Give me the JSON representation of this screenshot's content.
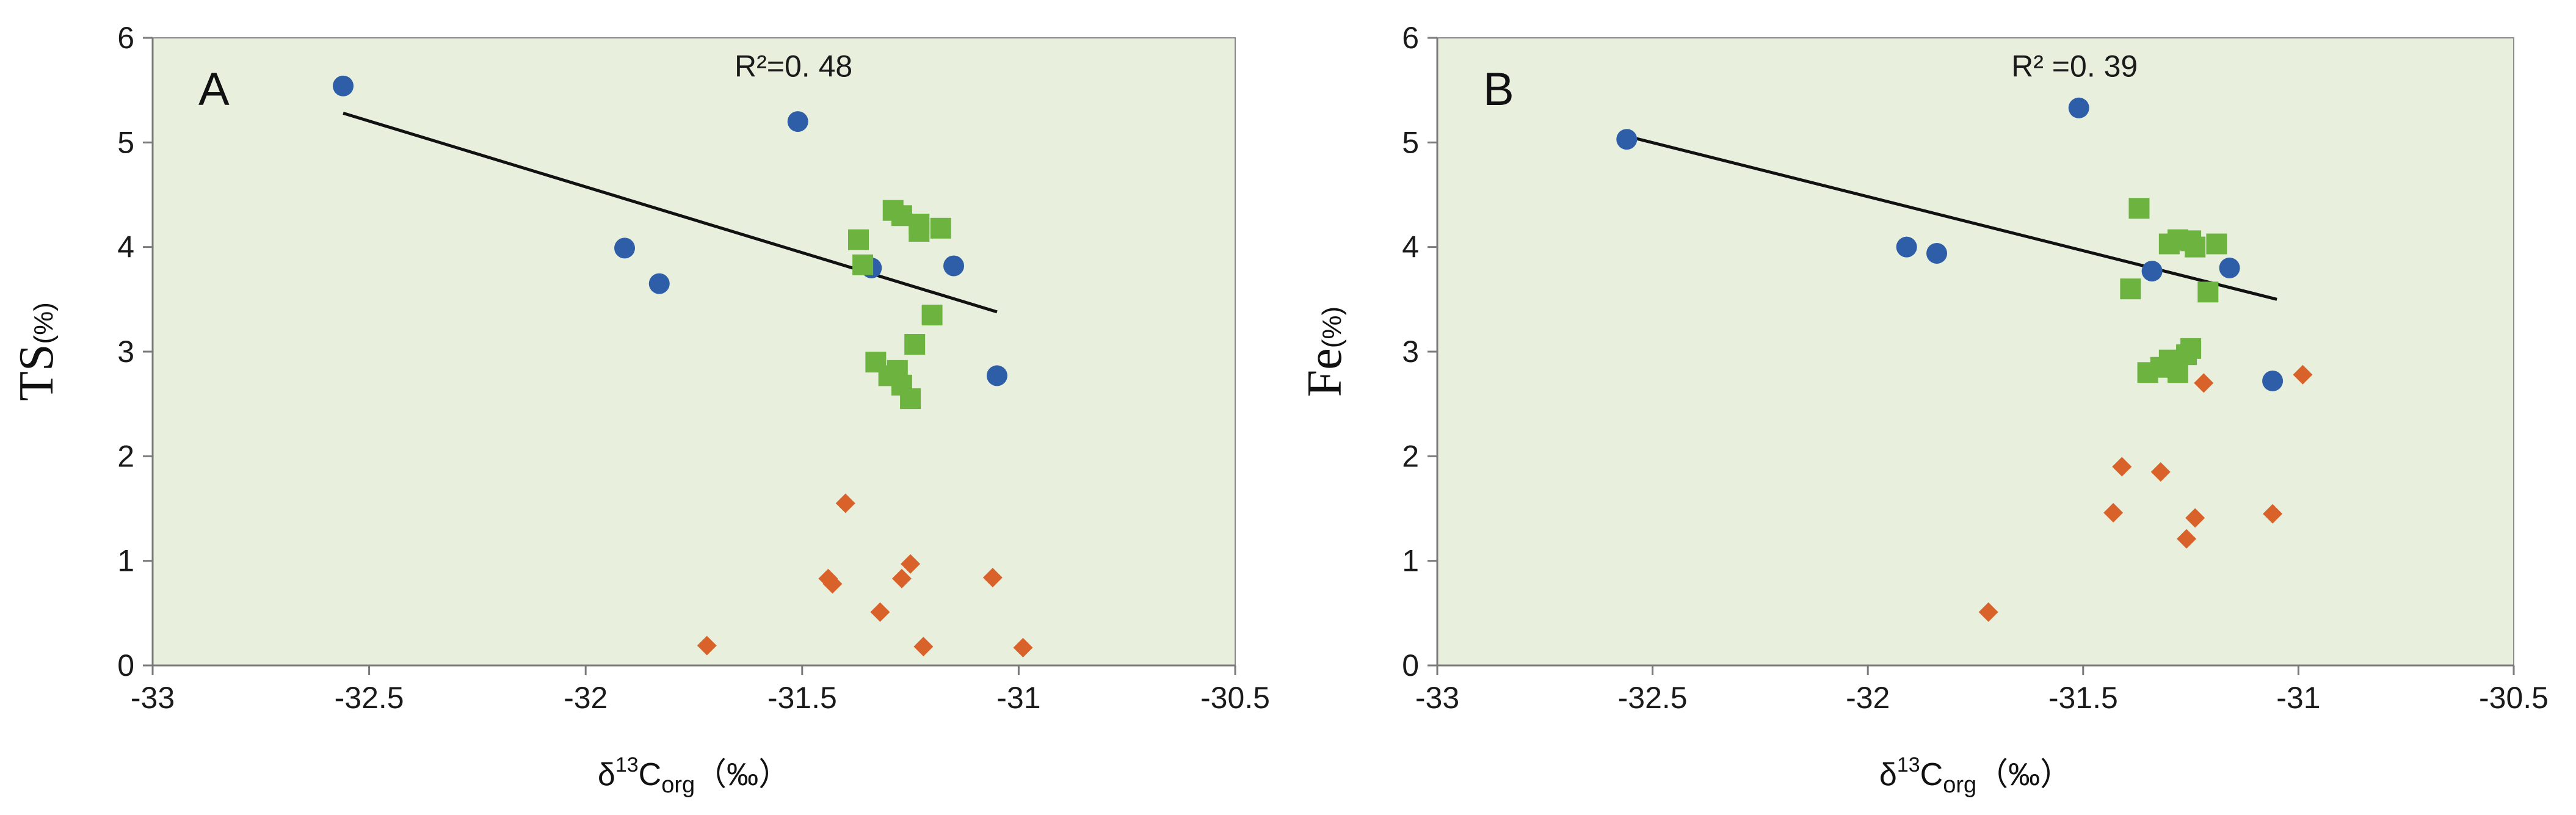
{
  "chart_data": [
    {
      "type": "scatter",
      "panel_label": "A",
      "title": "",
      "ylabel": "TS",
      "ylabel_unit": "(%)",
      "xlabel": {
        "prefix": "δ",
        "sup": "13",
        "base": "C",
        "sub": "org",
        "unit": "（‰）"
      },
      "xlim": [
        -33,
        -30.5
      ],
      "ylim": [
        0,
        6
      ],
      "x_ticks": [
        -33,
        -32.5,
        -32,
        -31.5,
        -31,
        -30.5
      ],
      "x_tick_labels": [
        "-33",
        "-32.5",
        "-32",
        "-31.5",
        "-31",
        "-30.5"
      ],
      "y_ticks": [
        0,
        1,
        2,
        3,
        4,
        5,
        6
      ],
      "y_tick_labels": [
        "0",
        "1",
        "2",
        "3",
        "4",
        "5",
        "6"
      ],
      "plot_background": "#e8f0dd",
      "grid": false,
      "annotation": "R²=0. 48",
      "trendline": {
        "x": [
          -32.56,
          -31.05
        ],
        "y": [
          5.28,
          3.38
        ],
        "color": "#111111"
      },
      "series": [
        {
          "name": "circles",
          "marker": "circle",
          "color": "#2f5ea8",
          "points": [
            [
              -32.56,
              5.54
            ],
            [
              -31.91,
              3.99
            ],
            [
              -31.83,
              3.65
            ],
            [
              -31.51,
              5.2
            ],
            [
              -31.34,
              3.8
            ],
            [
              -31.15,
              3.82
            ],
            [
              -31.05,
              2.77
            ]
          ]
        },
        {
          "name": "squares",
          "marker": "square",
          "color": "#6db33f",
          "points": [
            [
              -31.36,
              3.83
            ],
            [
              -31.37,
              4.07
            ],
            [
              -31.29,
              4.35
            ],
            [
              -31.27,
              4.3
            ],
            [
              -31.23,
              4.15
            ],
            [
              -31.23,
              4.22
            ],
            [
              -31.18,
              4.18
            ],
            [
              -31.2,
              3.35
            ],
            [
              -31.24,
              3.07
            ],
            [
              -31.33,
              2.9
            ],
            [
              -31.3,
              2.77
            ],
            [
              -31.28,
              2.82
            ],
            [
              -31.27,
              2.68
            ],
            [
              -31.25,
              2.55
            ]
          ]
        },
        {
          "name": "diamonds",
          "marker": "diamond",
          "color": "#d9622b",
          "points": [
            [
              -31.72,
              0.19
            ],
            [
              -31.44,
              0.83
            ],
            [
              -31.43,
              0.78
            ],
            [
              -31.4,
              1.55
            ],
            [
              -31.32,
              0.51
            ],
            [
              -31.27,
              0.83
            ],
            [
              -31.25,
              0.97
            ],
            [
              -31.22,
              0.18
            ],
            [
              -31.06,
              0.84
            ],
            [
              -30.99,
              0.17
            ]
          ]
        }
      ]
    },
    {
      "type": "scatter",
      "panel_label": "B",
      "title": "",
      "ylabel": "Fe",
      "ylabel_unit": "(%)",
      "xlabel": {
        "prefix": "δ",
        "sup": "13",
        "base": "C",
        "sub": "org",
        "unit": "（‰）"
      },
      "xlim": [
        -33,
        -30.5
      ],
      "ylim": [
        0,
        6
      ],
      "x_ticks": [
        -33,
        -32.5,
        -32,
        -31.5,
        -31,
        -30.5
      ],
      "x_tick_labels": [
        "-33",
        "-32.5",
        "-32",
        "-31.5",
        "-31",
        "-30.5"
      ],
      "y_ticks": [
        0,
        1,
        2,
        3,
        4,
        5,
        6
      ],
      "y_tick_labels": [
        "0",
        "1",
        "2",
        "3",
        "4",
        "5",
        "6"
      ],
      "plot_background": "#e8f0dd",
      "grid": false,
      "annotation": "R² =0. 39",
      "trendline": {
        "x": [
          -32.55,
          -31.05
        ],
        "y": [
          5.05,
          3.5
        ],
        "color": "#111111"
      },
      "series": [
        {
          "name": "circles",
          "marker": "circle",
          "color": "#2f5ea8",
          "points": [
            [
              -32.56,
              5.03
            ],
            [
              -31.91,
              4.0
            ],
            [
              -31.84,
              3.94
            ],
            [
              -31.51,
              5.33
            ],
            [
              -31.34,
              3.77
            ],
            [
              -31.16,
              3.8
            ],
            [
              -31.06,
              2.72
            ]
          ]
        },
        {
          "name": "squares",
          "marker": "square",
          "color": "#6db33f",
          "points": [
            [
              -31.37,
              4.37
            ],
            [
              -31.28,
              4.07
            ],
            [
              -31.3,
              4.03
            ],
            [
              -31.25,
              4.06
            ],
            [
              -31.24,
              4.0
            ],
            [
              -31.19,
              4.03
            ],
            [
              -31.39,
              3.6
            ],
            [
              -31.21,
              3.57
            ],
            [
              -31.25,
              3.03
            ],
            [
              -31.26,
              2.97
            ],
            [
              -31.3,
              2.92
            ],
            [
              -31.32,
              2.85
            ],
            [
              -31.28,
              2.8
            ],
            [
              -31.35,
              2.8
            ]
          ]
        },
        {
          "name": "diamonds",
          "marker": "diamond",
          "color": "#d9622b",
          "points": [
            [
              -31.72,
              0.51
            ],
            [
              -31.43,
              1.46
            ],
            [
              -31.41,
              1.9
            ],
            [
              -31.32,
              1.85
            ],
            [
              -31.26,
              1.21
            ],
            [
              -31.24,
              1.41
            ],
            [
              -31.22,
              2.7
            ],
            [
              -31.06,
              1.45
            ],
            [
              -30.99,
              2.78
            ]
          ]
        }
      ]
    }
  ]
}
